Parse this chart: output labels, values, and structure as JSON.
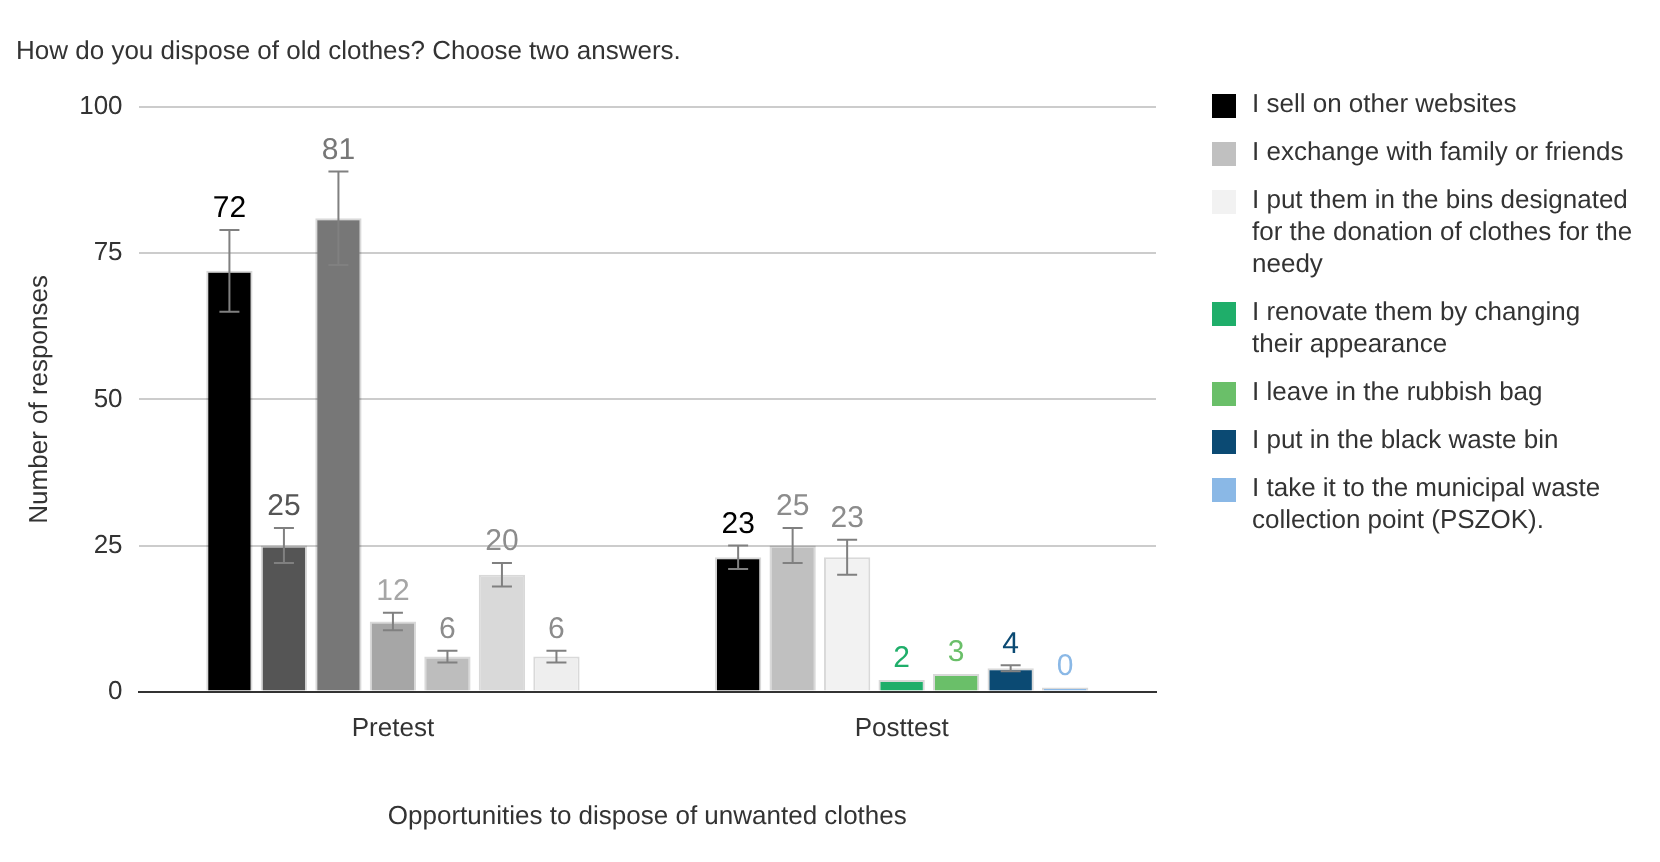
{
  "chart_data": {
    "type": "bar",
    "title": "How do you dispose of old clothes? Choose two answers.",
    "xlabel": "Opportunities to dispose of unwanted clothes",
    "ylabel": "Number of responses",
    "categories": [
      "Pretest",
      "Posttest"
    ],
    "ylim": [
      0,
      100
    ],
    "yticks": [
      0,
      25,
      50,
      75,
      100
    ],
    "grid": "y",
    "legend": "right",
    "data_labels": true,
    "series": [
      {
        "name": "I sell on other websites",
        "color": "#000000",
        "colors": [
          "#000000",
          "#000000"
        ],
        "values": [
          72,
          23
        ],
        "errors": [
          7,
          2
        ]
      },
      {
        "name": "I exchange with family or friends",
        "color": "#c0c0c0",
        "colors": [
          "#555555",
          "#c0c0c0"
        ],
        "values": [
          25,
          25
        ],
        "errors": [
          3,
          3
        ]
      },
      {
        "name": "I put them in the bins designated for the donation of clothes for the needy",
        "color": "#f2f2f2",
        "colors": [
          "#777777",
          "#f2f2f2"
        ],
        "values": [
          81,
          23
        ],
        "errors": [
          8,
          3
        ]
      },
      {
        "name": "I renovate them by changing their appearance",
        "color": "#1fae6a",
        "colors": [
          "#a6a6a6",
          "#1fae6a"
        ],
        "values": [
          12,
          2
        ],
        "errors": [
          1.5,
          null
        ]
      },
      {
        "name": "I leave in the rubbish bag",
        "color": "#6abf69",
        "colors": [
          "#bdbdbd",
          "#6abf69"
        ],
        "values": [
          6,
          3
        ],
        "errors": [
          1,
          null
        ]
      },
      {
        "name": "I put in the black waste bin",
        "color": "#0b4a73",
        "colors": [
          "#d9d9d9",
          "#0b4a73"
        ],
        "values": [
          20,
          4
        ],
        "errors": [
          2,
          0.5
        ]
      },
      {
        "name": "I take it to the municipal waste collection point (PSZOK).",
        "color": "#8ab8e6",
        "colors": [
          "#eeeeee",
          "#8ab8e6"
        ],
        "values": [
          6,
          0
        ],
        "errors": [
          1,
          null
        ]
      }
    ]
  }
}
